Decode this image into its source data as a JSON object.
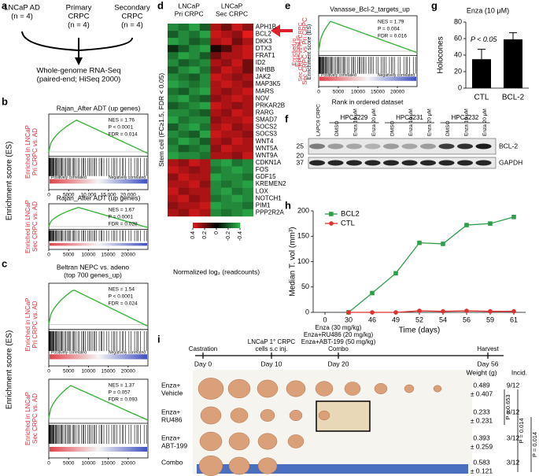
{
  "panel_labels": [
    "a",
    "b",
    "c",
    "d",
    "e",
    "f",
    "g",
    "h",
    "i"
  ],
  "a": {
    "groups": [
      [
        "LNCaP AD",
        "(n = 4)"
      ],
      [
        "Primary",
        "CRPC",
        "(n = 4)"
      ],
      [
        "Secondary",
        "CRPC",
        "(n = 4)"
      ]
    ],
    "result": [
      "Whole-genome RNA-Seq",
      "(paired-end; HiSeq 2000)"
    ]
  },
  "gsea_xlim": [
    0,
    25000
  ],
  "b": {
    "y_label": "Enrichment score (ES)",
    "plots": [
      {
        "title": "Rajan_After ADT (up genes)",
        "stats": [
          "NES = 1.76",
          "P < 0.0001",
          "FDR = 0.014"
        ],
        "side_label": [
          "Enriched in LNCaP",
          "Pri CRPC vs. AD"
        ],
        "pos": "Positively correlated",
        "neg": "Negatively correlated",
        "xticks": [
          0,
          5000,
          {
            "value": 10000,
            "label": "10,000"
          },
          {
            "value": 15000,
            "label": "15,000"
          },
          {
            "value": 20000,
            "label": "20,000"
          }
        ]
      },
      {
        "title": "Rajan_After ADT (up genes)",
        "stats": [
          "NES = 1.67",
          "P = 0.0001",
          "FDR = 0.028"
        ],
        "side_label": [
          "Enriched in LNCaP",
          "Sec CRPC vs. AD"
        ],
        "xticks": [
          0,
          5000,
          10000,
          15000,
          20000
        ]
      }
    ]
  },
  "c": {
    "title": [
      "Beltran NEPC vs. adeno",
      "(top 700 genes_up)"
    ],
    "y_label": "Enrichment score (ES)",
    "plots": [
      {
        "stats": [
          "NES = 1.54",
          "P < 0.0001",
          "FDR = 0.024"
        ],
        "side_label": [
          "Enriched in LNCaP",
          "Pri CRPC vs. AD"
        ],
        "pos": "Positively correlated",
        "neg": "Negatively correlated",
        "xticks": [
          0,
          5000,
          10000,
          15000,
          20000
        ]
      },
      {
        "stats": [
          "NES = 1.37",
          "P = 0.057",
          "FDR = 0.093"
        ],
        "side_label": [
          "Enriched in LNCaP",
          "Sec CRPC vs. AD"
        ],
        "xticks": [
          0,
          5000,
          10000,
          15000,
          20000
        ]
      }
    ]
  },
  "d": {
    "groups": [
      [
        "LNCaP",
        "Pri CRPC"
      ],
      [
        "LNCaP",
        "Sec CRPC"
      ]
    ],
    "y_label": "Stem cell (FC≥1.5, FDR < 0.05)",
    "genes": [
      "APH1B",
      "BCL2",
      "DKK3",
      "DTX3",
      "FRAT1",
      "ID2",
      "INHBB",
      "JAK2",
      "MAP3K5",
      "MARS",
      "NOV",
      "PRKAR2B",
      "RARG",
      "SMAD7",
      "SOCS2",
      "SOCS3",
      "WNT4",
      "WNT5A",
      "WNT9A",
      "CDKN1A",
      "FOS",
      "GDF15",
      "KREMEN2",
      "LOX",
      "NOTCH1",
      "PIM1",
      "PPP2R2A"
    ],
    "values": [
      [
        -0.3,
        -0.25,
        -0.35,
        -0.2,
        0.3,
        0.2,
        0.35,
        0.25
      ],
      [
        -0.2,
        -0.3,
        -0.25,
        -0.35,
        0.35,
        0.3,
        0.25,
        0.4
      ],
      [
        -0.35,
        -0.3,
        -0.2,
        -0.25,
        0.3,
        0.35,
        0.2,
        0.3
      ],
      [
        -0.1,
        -0.2,
        -0.3,
        -0.35,
        0.05,
        0.15,
        0.3,
        0.35
      ],
      [
        -0.25,
        -0.35,
        -0.3,
        -0.2,
        0.2,
        0.3,
        0.3,
        0.35
      ],
      [
        -0.3,
        -0.2,
        -0.25,
        -0.3,
        0.3,
        0.25,
        0.35,
        0.2
      ],
      [
        -0.2,
        -0.3,
        -0.35,
        -0.25,
        0.25,
        0.35,
        0.3,
        0.2
      ],
      [
        -0.3,
        -0.25,
        -0.2,
        -0.3,
        0.35,
        0.3,
        0.25,
        0.3
      ],
      [
        -0.35,
        -0.3,
        -0.25,
        -0.3,
        0.3,
        0.35,
        0.3,
        0.25
      ],
      [
        -0.25,
        -0.2,
        -0.3,
        -0.35,
        0.3,
        0.25,
        0.3,
        0.35
      ],
      [
        -0.3,
        -0.35,
        -0.25,
        -0.2,
        0.25,
        0.3,
        0.35,
        0.3
      ],
      [
        -0.2,
        -0.25,
        -0.3,
        -0.35,
        0.35,
        0.3,
        0.25,
        0.3
      ],
      [
        -0.3,
        -0.3,
        -0.25,
        -0.2,
        0.3,
        0.25,
        0.35,
        0.3
      ],
      [
        -0.35,
        -0.25,
        -0.3,
        -0.3,
        0.25,
        0.3,
        0.3,
        0.35
      ],
      [
        -0.2,
        -0.3,
        -0.35,
        -0.25,
        0.3,
        0.35,
        0.25,
        0.3
      ],
      [
        -0.3,
        -0.25,
        -0.2,
        -0.35,
        0.35,
        0.3,
        0.3,
        0.25
      ],
      [
        -0.25,
        -0.35,
        -0.3,
        -0.2,
        0.3,
        0.25,
        0.35,
        0.3
      ],
      [
        -0.3,
        -0.2,
        -0.25,
        -0.3,
        0.25,
        0.35,
        0.3,
        0.3
      ],
      [
        -0.35,
        -0.3,
        -0.3,
        -0.25,
        0.3,
        0.3,
        0.25,
        0.35
      ],
      [
        0.3,
        0.25,
        0.35,
        0.3,
        -0.3,
        -0.35,
        -0.25,
        -0.3
      ],
      [
        0.35,
        0.3,
        0.25,
        0.3,
        -0.25,
        -0.3,
        -0.35,
        -0.3
      ],
      [
        0.25,
        0.35,
        0.3,
        0.3,
        -0.35,
        -0.3,
        -0.3,
        -0.25
      ],
      [
        0.3,
        0.3,
        0.35,
        0.25,
        -0.3,
        -0.25,
        -0.3,
        -0.35
      ],
      [
        0.35,
        0.25,
        0.3,
        0.3,
        -0.3,
        -0.35,
        -0.25,
        -0.3
      ],
      [
        0.3,
        0.35,
        0.25,
        0.3,
        -0.25,
        -0.3,
        -0.35,
        -0.3
      ],
      [
        0.25,
        0.3,
        0.3,
        0.35,
        -0.35,
        -0.3,
        -0.3,
        -0.25
      ],
      [
        0.3,
        0.25,
        0.35,
        0.3,
        -0.3,
        -0.25,
        -0.3,
        -0.35
      ]
    ],
    "legend_lim": [
      0.4,
      -0.4
    ],
    "legend_ticks": [
      0.4,
      0.2,
      0,
      -0.2,
      -0.4
    ],
    "legend_label": "Normalized log₂ (readcounts)"
  },
  "e": {
    "title": "Vanasse_Bcl-2_targets_up",
    "stats": [
      "NES = 1.79",
      "P = 0.004",
      "FDR = 0.016"
    ],
    "side_label": [
      "Enriched in",
      "Sec CRPC vs Pri CRPC"
    ],
    "y_label": "Enrichment score (ES)",
    "pos": "Positively correlated",
    "neg": "Negatively correlated",
    "xticks": [
      0,
      5000,
      10000,
      15000,
      20000
    ],
    "x_label": "Rank in ordered dataset"
  },
  "f": {
    "groups": [
      "HPCa229",
      "HPCa231",
      "HPCa232"
    ],
    "lanes": [
      "LAPC9 CRPC",
      "DMSO",
      "Enza 10 μM",
      "Enza 20 μM",
      "DMSO",
      "Enza 10 μM",
      "Enza 20 μM",
      "DMSO",
      "Enza 10 μM",
      "Enza 20 μM"
    ],
    "markers": [
      "25",
      "20",
      "37"
    ],
    "bands": [
      "BCL-2",
      "GAPDH"
    ]
  },
  "chart_data": [
    {
      "type": "bar",
      "title": "Enza (10 μM)",
      "y_label": "Holocones",
      "categories": [
        "CTL",
        "BCL-2"
      ],
      "values": [
        35,
        59
      ],
      "errors": [
        12,
        8
      ],
      "color": "#000000",
      "ylim": [
        0,
        80
      ],
      "yticks": [
        0,
        20,
        40,
        60,
        80
      ],
      "annotation": "P < 0.05"
    },
    {
      "type": "line",
      "y_label": "Median T. vol (mm³)",
      "x_label": "Time (days)",
      "categories": [
        "0",
        "30",
        "46",
        "49",
        "52",
        "54",
        "56",
        "59",
        "61"
      ],
      "series": [
        {
          "name": "BCL2",
          "color": "#2e9e4a",
          "marker": "square",
          "values": [
            null,
            0,
            38,
            77,
            137,
            135,
            172,
            175,
            188
          ]
        },
        {
          "name": "CTL",
          "color": "#e03030",
          "marker": "circle",
          "values": [
            null,
            0,
            0,
            0,
            3,
            2,
            3,
            2,
            2
          ]
        }
      ],
      "ylim": [
        0,
        200
      ],
      "yticks": [
        0,
        50,
        100,
        150,
        200
      ],
      "legend": "upper left"
    }
  ],
  "i": {
    "timeline": [
      {
        "above": [
          "Castration"
        ],
        "day": "Day 0"
      },
      {
        "above": [
          "LNCaP 1° CRPC",
          "cells s.c inj."
        ],
        "day": "Day 10"
      },
      {
        "above": [
          "Enza (30 mg/kg)",
          "Enza+RU486 (20 mg/kg)",
          "Enza+ABT-199 (50 mg/kg)",
          "Combo"
        ],
        "day": "Day 20"
      },
      {
        "above": [
          "Harvest"
        ],
        "day": "Day 56"
      }
    ],
    "headers": [
      "Weight (g)",
      "Incid."
    ],
    "groups": [
      {
        "label": [
          "Enza+",
          "Vehicle"
        ],
        "weight": [
          "0.489",
          "± 0.407"
        ],
        "incid": "9/12"
      },
      {
        "label": [
          "Enza+",
          "RU486"
        ],
        "weight": [
          "0.233",
          "± 0.231"
        ],
        "incid": "8/12"
      },
      {
        "label": [
          "Enza+",
          "ABT-199"
        ],
        "weight": [
          "0.393",
          "± 0.259"
        ],
        "incid": "3/12"
      },
      {
        "label": [
          "Combo"
        ],
        "weight": [
          "0.583",
          "± 0.121"
        ],
        "incid": "3/12"
      }
    ],
    "p_values": [
      "P = 0.653",
      "P = 0.014",
      "P = 0.014"
    ]
  }
}
